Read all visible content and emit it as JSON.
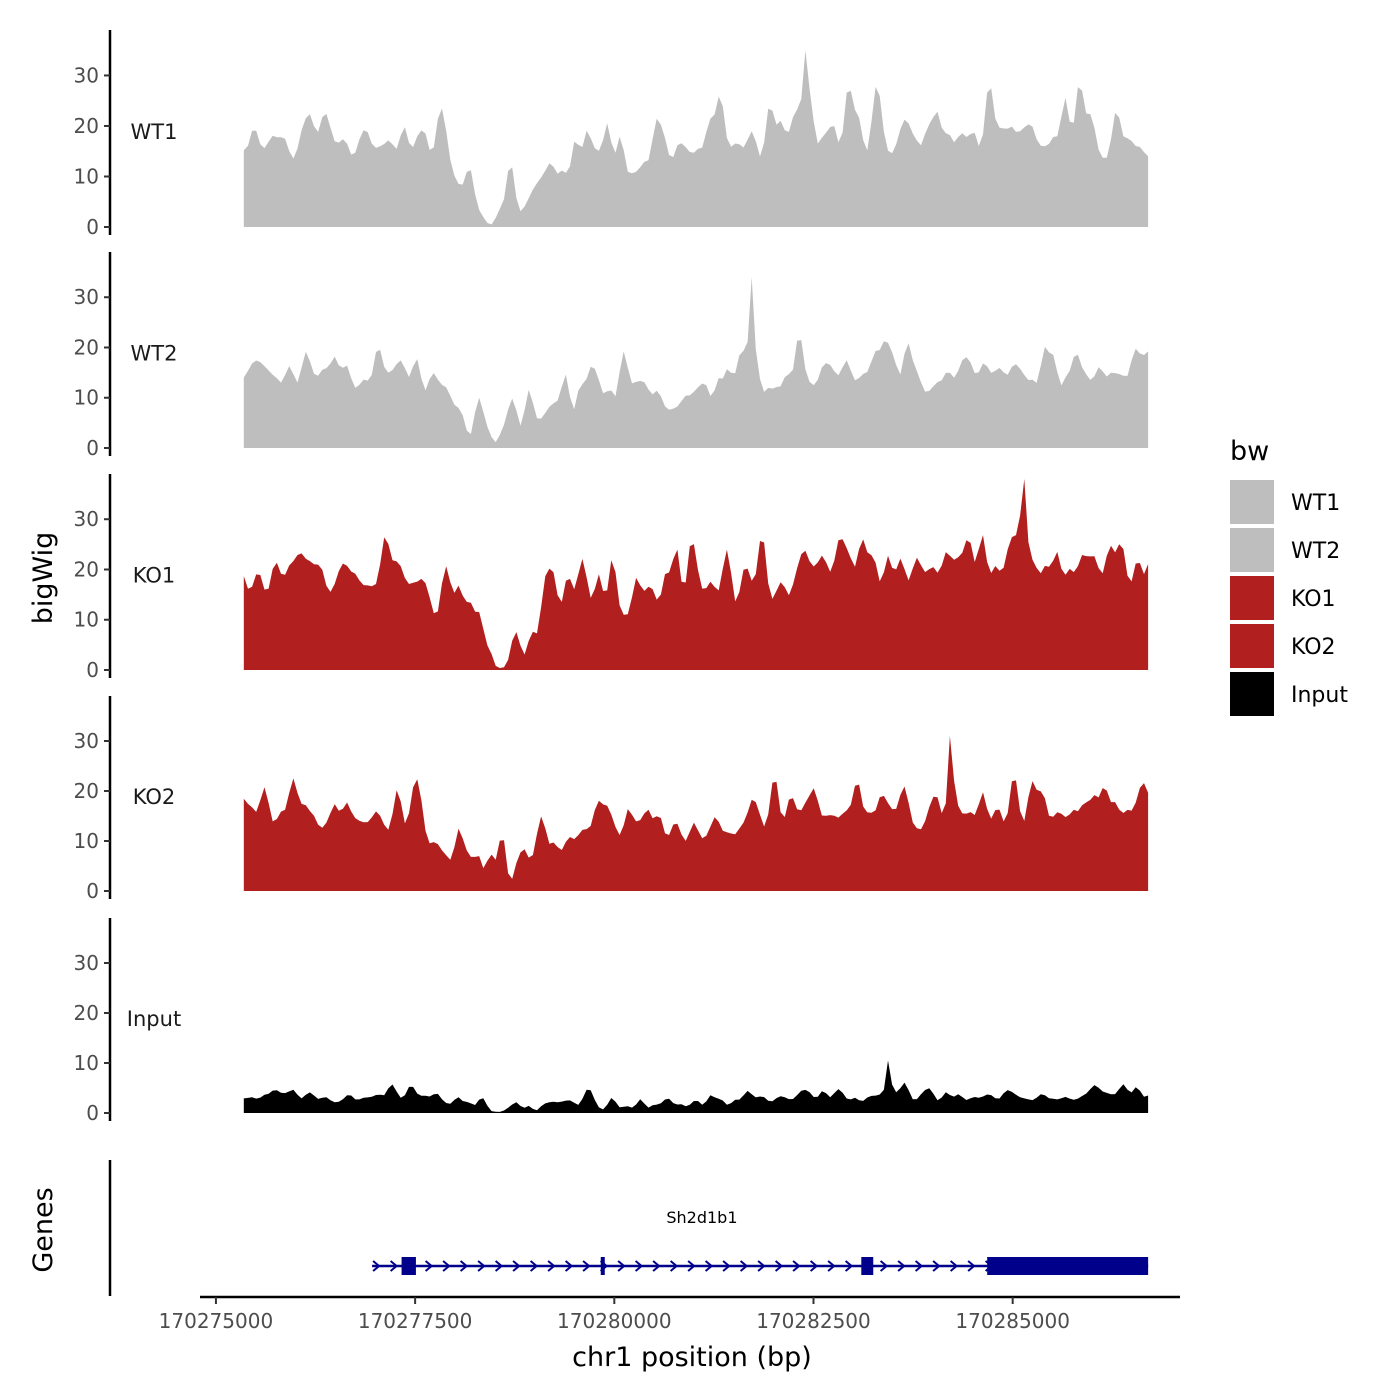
{
  "chart_data": {
    "type": "area",
    "y_axis_title": "bigWig",
    "x_axis_title": "chr1 position (bp)",
    "xlim": [
      170274800,
      170287100
    ],
    "x_ticks": [
      170275000,
      170277500,
      170280000,
      170282500,
      170285000
    ],
    "x_tick_labels": [
      "170275000",
      "170277500",
      "170280000",
      "170282500",
      "170285000"
    ],
    "ylim": [
      0,
      39
    ],
    "y_ticks": [
      0,
      10,
      20,
      30
    ],
    "y_tick_labels": [
      "0",
      "10",
      "20",
      "30"
    ],
    "data_range": [
      170275350,
      170286700
    ],
    "legend": {
      "title": "bw",
      "entries": [
        {
          "name": "WT1",
          "color": "#bebebe"
        },
        {
          "name": "WT2",
          "color": "#bebebe"
        },
        {
          "name": "KO1",
          "color": "#b21f1f"
        },
        {
          "name": "KO2",
          "color": "#b21f1f"
        },
        {
          "name": "Input",
          "color": "#000000"
        }
      ]
    },
    "series": [
      {
        "name": "WT1",
        "label": "WT1",
        "color": "#bebebe",
        "seed": 11,
        "base": 18,
        "valley": 0.25,
        "amp": 11,
        "max": 35
      },
      {
        "name": "WT2",
        "label": "WT2",
        "color": "#bebebe",
        "seed": 23,
        "base": 15,
        "valley": 0.3,
        "amp": 10,
        "max": 34
      },
      {
        "name": "KO1",
        "label": "KO1",
        "color": "#b21f1f",
        "seed": 37,
        "base": 19,
        "valley": 0.25,
        "amp": 12,
        "max": 38
      },
      {
        "name": "KO2",
        "label": "KO2",
        "color": "#b21f1f",
        "seed": 51,
        "base": 16,
        "valley": 0.3,
        "amp": 9,
        "max": 31
      },
      {
        "name": "Input",
        "label": "Input",
        "color": "#000000",
        "seed": 67,
        "base": 3.5,
        "valley": 0.6,
        "amp": 3,
        "max": 10.5
      }
    ],
    "genes_panel": {
      "title": "Genes",
      "gene_name": "Sh2d1b1",
      "color": "#00008b",
      "start": 170276960,
      "end": 170286700,
      "exons": [
        {
          "start": 170277330,
          "end": 170277510,
          "height": "thick"
        },
        {
          "start": 170279830,
          "end": 170279880,
          "height": "thick"
        },
        {
          "start": 170283100,
          "end": 170283250,
          "height": "thick"
        },
        {
          "start": 170284680,
          "end": 170286700,
          "height": "thick"
        }
      ]
    }
  }
}
